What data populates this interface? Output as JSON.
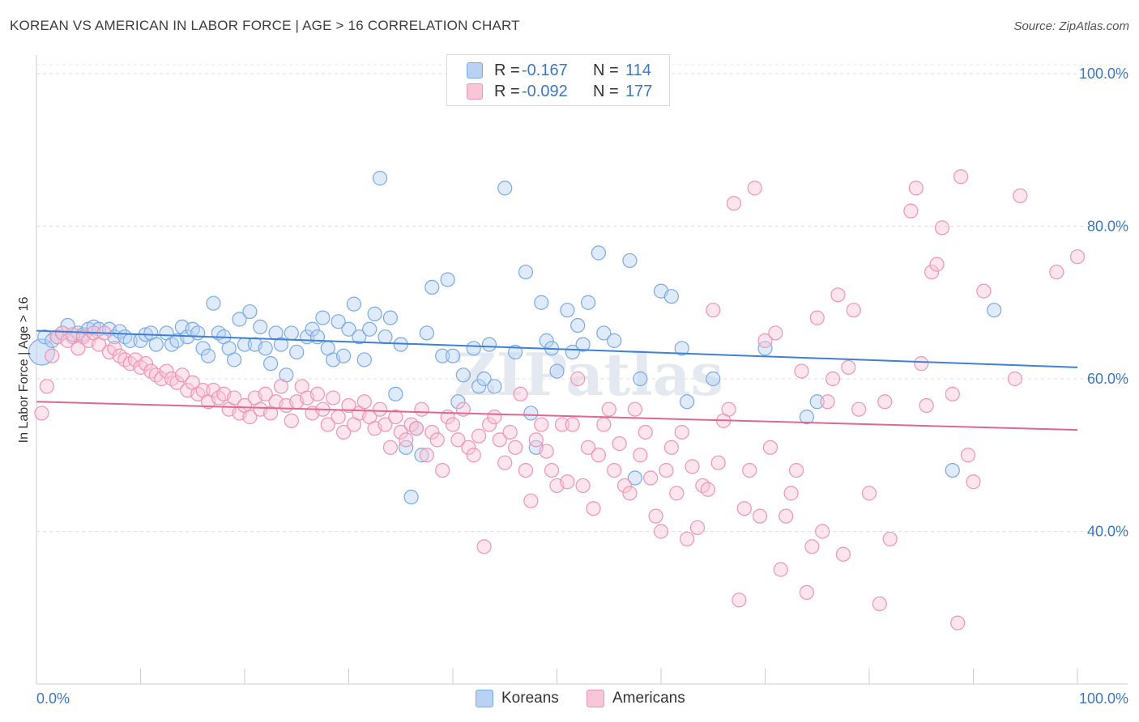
{
  "title": "KOREAN VS AMERICAN IN LABOR FORCE | AGE > 16 CORRELATION CHART",
  "source": "Source: ZipAtlas.com",
  "watermark": "ZIPatlas",
  "legend_stats": [
    {
      "r_label": "R =",
      "r_value": "-0.167",
      "n_label": "N =",
      "n_value": "114",
      "color": "#7aaae6",
      "fill": "#b9d2f4"
    },
    {
      "r_label": "R =",
      "r_value": "-0.092",
      "n_label": "N =",
      "n_value": "177",
      "color": "#ef94b1",
      "fill": "#f8c6d6"
    }
  ],
  "legend_bottom": [
    {
      "label": "Koreans",
      "color": "#7aaae6",
      "fill": "#b9d2f4"
    },
    {
      "label": "Americans",
      "color": "#ef94b1",
      "fill": "#f8c6d6"
    }
  ],
  "chart_data": {
    "type": "scatter",
    "title": "KOREAN VS AMERICAN IN LABOR FORCE | AGE > 16 CORRELATION CHART",
    "xlabel": "",
    "ylabel": "In Labor Force | Age > 16",
    "xlim": [
      0,
      100
    ],
    "ylim": [
      20,
      100
    ],
    "x_tick_labels": [
      "0.0%",
      "100.0%"
    ],
    "y_ticks": [
      40,
      60,
      80,
      100
    ],
    "y_tick_labels": [
      "40.0%",
      "60.0%",
      "80.0%",
      "100.0%"
    ],
    "grid": true,
    "legend_position": "top-center",
    "series": [
      {
        "name": "Koreans",
        "color": "#3f7fd4",
        "fill": "#b9d2f4",
        "trend": {
          "y_at_0": 66.3,
          "y_at_100": 61.5
        },
        "points": [
          [
            0.5,
            63.5
          ],
          [
            0.8,
            65.5
          ],
          [
            1.5,
            65.0
          ],
          [
            2,
            65.5
          ],
          [
            2.5,
            66.0
          ],
          [
            3,
            67.0
          ],
          [
            3.5,
            65.5
          ],
          [
            4,
            66.0
          ],
          [
            4.5,
            65.8
          ],
          [
            5,
            66.5
          ],
          [
            5.5,
            66.8
          ],
          [
            6,
            66.5
          ],
          [
            7,
            66.5
          ],
          [
            7.5,
            65.5
          ],
          [
            8,
            66.2
          ],
          [
            8.5,
            65.5
          ],
          [
            9,
            65.0
          ],
          [
            10,
            65.0
          ],
          [
            10.5,
            65.8
          ],
          [
            11,
            66.0
          ],
          [
            11.5,
            64.5
          ],
          [
            12.5,
            66.0
          ],
          [
            13,
            64.5
          ],
          [
            13.5,
            65.0
          ],
          [
            14,
            66.8
          ],
          [
            14.5,
            65.5
          ],
          [
            15,
            66.5
          ],
          [
            15.5,
            66.0
          ],
          [
            16,
            64.0
          ],
          [
            16.5,
            63.0
          ],
          [
            17,
            69.9
          ],
          [
            17.5,
            66.0
          ],
          [
            18,
            65.5
          ],
          [
            18.5,
            64.0
          ],
          [
            19,
            62.5
          ],
          [
            19.5,
            67.8
          ],
          [
            20,
            64.5
          ],
          [
            20.5,
            68.8
          ],
          [
            21,
            64.5
          ],
          [
            21.5,
            66.8
          ],
          [
            22,
            64.0
          ],
          [
            22.5,
            62.0
          ],
          [
            23,
            66.0
          ],
          [
            23.5,
            64.5
          ],
          [
            24,
            60.5
          ],
          [
            24.5,
            66.0
          ],
          [
            25,
            63.5
          ],
          [
            26,
            65.5
          ],
          [
            26.5,
            66.5
          ],
          [
            27,
            65.5
          ],
          [
            27.5,
            68.0
          ],
          [
            28,
            64.0
          ],
          [
            28.5,
            62.5
          ],
          [
            29,
            67.5
          ],
          [
            29.5,
            63.0
          ],
          [
            30,
            66.5
          ],
          [
            30.5,
            69.8
          ],
          [
            31,
            65.5
          ],
          [
            31.5,
            62.5
          ],
          [
            32,
            66.5
          ],
          [
            32.5,
            68.5
          ],
          [
            33,
            86.3
          ],
          [
            33.5,
            65.5
          ],
          [
            34,
            68.0
          ],
          [
            34.5,
            58.0
          ],
          [
            35,
            64.5
          ],
          [
            35.5,
            51.0
          ],
          [
            36,
            44.5
          ],
          [
            36.5,
            53.5
          ],
          [
            37,
            50.0
          ],
          [
            37.5,
            66.0
          ],
          [
            38,
            72.0
          ],
          [
            39,
            63.0
          ],
          [
            39.5,
            73.0
          ],
          [
            40,
            63.0
          ],
          [
            40.5,
            57.0
          ],
          [
            41,
            60.5
          ],
          [
            42,
            64.0
          ],
          [
            42.5,
            59.0
          ],
          [
            43,
            60.0
          ],
          [
            43.5,
            64.5
          ],
          [
            44,
            59.0
          ],
          [
            45,
            85.0
          ],
          [
            46,
            63.5
          ],
          [
            47,
            74.0
          ],
          [
            47.5,
            55.5
          ],
          [
            48,
            51.0
          ],
          [
            48.5,
            70.0
          ],
          [
            49,
            65.0
          ],
          [
            49.5,
            64.0
          ],
          [
            50,
            61.0
          ],
          [
            51,
            69.0
          ],
          [
            51.5,
            63.5
          ],
          [
            52,
            67.0
          ],
          [
            52.5,
            64.5
          ],
          [
            53,
            70.0
          ],
          [
            54,
            76.5
          ],
          [
            54.5,
            66.0
          ],
          [
            55.5,
            65.0
          ],
          [
            57,
            75.5
          ],
          [
            57.5,
            47.0
          ],
          [
            58,
            60.0
          ],
          [
            60,
            71.5
          ],
          [
            61,
            70.8
          ],
          [
            62,
            64.0
          ],
          [
            62.5,
            57.0
          ],
          [
            65,
            60.0
          ],
          [
            70,
            64.0
          ],
          [
            74,
            55.0
          ],
          [
            75,
            57.0
          ],
          [
            88,
            48.0
          ],
          [
            92,
            69.0
          ]
        ]
      },
      {
        "name": "Americans",
        "color": "#e06693",
        "fill": "#f8c6d6",
        "trend": {
          "y_at_0": 57.0,
          "y_at_100": 53.3
        },
        "points": [
          [
            0.5,
            55.5
          ],
          [
            1,
            59.0
          ],
          [
            1.5,
            63.0
          ],
          [
            2,
            65.5
          ],
          [
            2.5,
            66.0
          ],
          [
            3,
            65.0
          ],
          [
            3.5,
            65.8
          ],
          [
            4,
            64.0
          ],
          [
            4.5,
            65.5
          ],
          [
            5,
            65.0
          ],
          [
            5.5,
            66.0
          ],
          [
            6,
            64.5
          ],
          [
            6.5,
            66.0
          ],
          [
            7,
            63.5
          ],
          [
            7.5,
            64.0
          ],
          [
            8,
            63.0
          ],
          [
            8.5,
            62.5
          ],
          [
            9,
            62.0
          ],
          [
            9.5,
            62.5
          ],
          [
            10,
            61.5
          ],
          [
            10.5,
            62.0
          ],
          [
            11,
            61.0
          ],
          [
            11.5,
            60.5
          ],
          [
            12,
            60.0
          ],
          [
            12.5,
            61.0
          ],
          [
            13,
            60.0
          ],
          [
            13.5,
            59.5
          ],
          [
            14,
            60.5
          ],
          [
            14.5,
            58.5
          ],
          [
            15,
            59.5
          ],
          [
            15.5,
            58.0
          ],
          [
            16,
            58.5
          ],
          [
            16.5,
            57.0
          ],
          [
            17,
            58.5
          ],
          [
            17.5,
            57.5
          ],
          [
            18,
            58.0
          ],
          [
            18.5,
            56.0
          ],
          [
            19,
            57.5
          ],
          [
            19.5,
            55.5
          ],
          [
            20,
            56.5
          ],
          [
            20.5,
            55.0
          ],
          [
            21,
            57.5
          ],
          [
            21.5,
            56.0
          ],
          [
            22,
            58.0
          ],
          [
            22.5,
            55.5
          ],
          [
            23,
            57.0
          ],
          [
            23.5,
            59.0
          ],
          [
            24,
            56.5
          ],
          [
            24.5,
            54.5
          ],
          [
            25,
            57.0
          ],
          [
            25.5,
            59.0
          ],
          [
            26,
            57.5
          ],
          [
            26.5,
            55.5
          ],
          [
            27,
            58.0
          ],
          [
            27.5,
            56.0
          ],
          [
            28,
            54.0
          ],
          [
            28.5,
            57.5
          ],
          [
            29,
            55.0
          ],
          [
            29.5,
            53.0
          ],
          [
            30,
            56.5
          ],
          [
            30.5,
            54.0
          ],
          [
            31,
            55.5
          ],
          [
            31.5,
            57.0
          ],
          [
            32,
            55.0
          ],
          [
            32.5,
            53.5
          ],
          [
            33,
            56.0
          ],
          [
            33.5,
            54.0
          ],
          [
            34,
            51.0
          ],
          [
            34.5,
            55.0
          ],
          [
            35,
            53.0
          ],
          [
            35.5,
            52.0
          ],
          [
            36,
            54.0
          ],
          [
            36.5,
            53.5
          ],
          [
            37,
            56.0
          ],
          [
            37.5,
            50.0
          ],
          [
            38,
            53.0
          ],
          [
            38.5,
            52.0
          ],
          [
            39,
            48.0
          ],
          [
            39.5,
            55.0
          ],
          [
            40,
            54.0
          ],
          [
            40.5,
            52.0
          ],
          [
            41,
            56.0
          ],
          [
            41.5,
            51.0
          ],
          [
            42,
            50.0
          ],
          [
            42.5,
            52.5
          ],
          [
            43,
            38.0
          ],
          [
            43.5,
            54.0
          ],
          [
            44,
            55.0
          ],
          [
            44.5,
            52.0
          ],
          [
            45,
            49.0
          ],
          [
            45.5,
            53.0
          ],
          [
            46,
            51.0
          ],
          [
            46.5,
            58.0
          ],
          [
            47,
            48.0
          ],
          [
            47.5,
            44.0
          ],
          [
            48,
            52.0
          ],
          [
            48.5,
            54.0
          ],
          [
            49,
            50.5
          ],
          [
            49.5,
            48.0
          ],
          [
            50,
            46.0
          ],
          [
            50.5,
            54.0
          ],
          [
            51,
            46.5
          ],
          [
            51.5,
            54.0
          ],
          [
            52,
            60.0
          ],
          [
            52.5,
            46.0
          ],
          [
            53,
            51.0
          ],
          [
            53.5,
            43.0
          ],
          [
            54,
            50.0
          ],
          [
            54.5,
            54.0
          ],
          [
            55,
            56.0
          ],
          [
            55.5,
            48.0
          ],
          [
            56,
            51.5
          ],
          [
            56.5,
            46.0
          ],
          [
            57,
            45.0
          ],
          [
            57.5,
            56.0
          ],
          [
            58,
            50.0
          ],
          [
            58.5,
            53.0
          ],
          [
            59,
            47.0
          ],
          [
            59.5,
            42.0
          ],
          [
            60,
            40.0
          ],
          [
            60.5,
            48.0
          ],
          [
            61,
            51.0
          ],
          [
            61.5,
            45.0
          ],
          [
            62,
            53.0
          ],
          [
            62.5,
            39.0
          ],
          [
            63,
            48.5
          ],
          [
            63.5,
            40.5
          ],
          [
            64,
            46.0
          ],
          [
            64.5,
            45.5
          ],
          [
            65,
            69.0
          ],
          [
            65.5,
            49.0
          ],
          [
            66,
            54.5
          ],
          [
            66.5,
            56.0
          ],
          [
            67,
            83.0
          ],
          [
            67.5,
            31.0
          ],
          [
            68,
            43.0
          ],
          [
            68.5,
            48.0
          ],
          [
            69,
            85.0
          ],
          [
            69.5,
            42.0
          ],
          [
            70,
            65.0
          ],
          [
            70.5,
            51.0
          ],
          [
            71,
            66.0
          ],
          [
            71.5,
            35.0
          ],
          [
            72,
            42.0
          ],
          [
            72.5,
            45.0
          ],
          [
            73,
            48.0
          ],
          [
            73.5,
            61.0
          ],
          [
            74,
            32.0
          ],
          [
            74.5,
            38.0
          ],
          [
            75,
            68.0
          ],
          [
            75.5,
            40.0
          ],
          [
            76,
            57.0
          ],
          [
            76.5,
            60.0
          ],
          [
            77,
            71.0
          ],
          [
            77.5,
            37.0
          ],
          [
            78,
            61.5
          ],
          [
            78.5,
            69.0
          ],
          [
            79,
            56.0
          ],
          [
            80,
            45.0
          ],
          [
            81,
            30.5
          ],
          [
            81.5,
            57.0
          ],
          [
            82,
            39.0
          ],
          [
            84,
            82.0
          ],
          [
            84.5,
            85.0
          ],
          [
            85,
            62.0
          ],
          [
            85.5,
            56.5
          ],
          [
            86,
            74.0
          ],
          [
            86.5,
            75.0
          ],
          [
            87,
            79.8
          ],
          [
            88,
            58.0
          ],
          [
            88.5,
            28.0
          ],
          [
            88.8,
            86.5
          ],
          [
            89.5,
            50.0
          ],
          [
            90,
            46.5
          ],
          [
            91,
            71.5
          ],
          [
            94,
            60.0
          ],
          [
            94.5,
            84.0
          ],
          [
            98,
            74.0
          ],
          [
            100,
            76.0
          ]
        ]
      }
    ]
  }
}
